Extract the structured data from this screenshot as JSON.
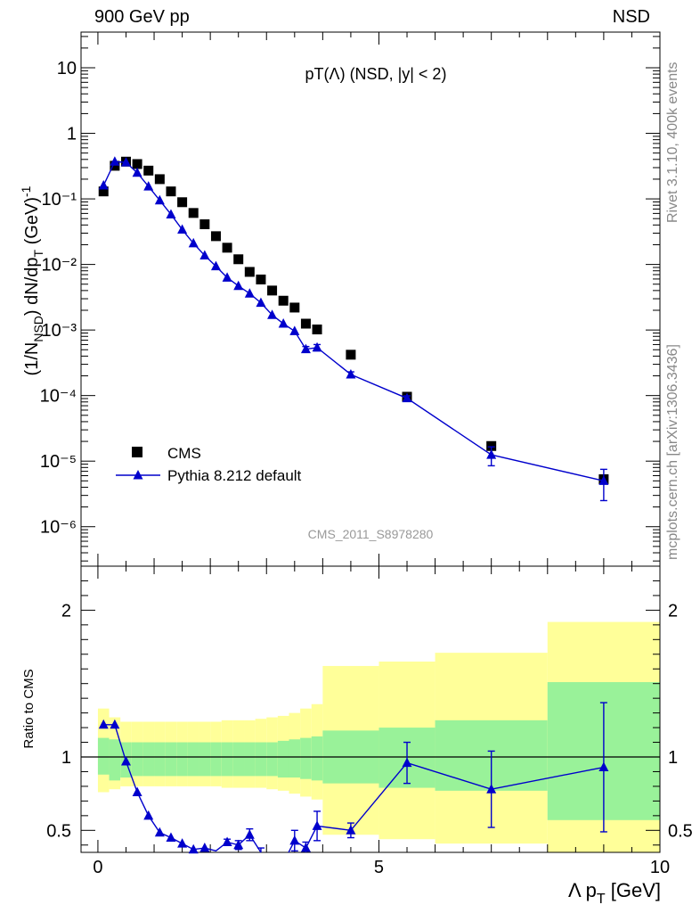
{
  "header": {
    "left": "900 GeV pp",
    "right": "NSD"
  },
  "side_text": {
    "top": "Rivet 3.1.10,  400k events",
    "bottom": "mcplots.cern.ch [arXiv:1306.3436]"
  },
  "colors": {
    "cms": "#000000",
    "pythia": "#0000cc",
    "band_inner": "#99f299",
    "band_outer": "#ffff99"
  },
  "chart_data": [
    {
      "type": "scatter",
      "title": "pT(Λ) (NSD, |y| < 2)",
      "ylabel": "(1/N_NSD) dN/dp_T (GeV)^-1",
      "ylog": true,
      "ylim": [
        2.5e-07,
        35
      ],
      "xlim": [
        -0.3,
        10
      ],
      "yticklabels": [
        "10",
        "1",
        "10⁻¹",
        "10⁻²",
        "10⁻³",
        "10⁻⁴",
        "10⁻⁵",
        "10⁻⁶"
      ],
      "watermark": "CMS_2011_S8978280",
      "series": [
        {
          "name": "CMS",
          "marker": "square",
          "x": [
            0.1,
            0.3,
            0.5,
            0.7,
            0.9,
            1.1,
            1.3,
            1.5,
            1.7,
            1.9,
            2.1,
            2.3,
            2.5,
            2.7,
            2.9,
            3.1,
            3.3,
            3.5,
            3.7,
            3.9,
            4.5,
            5.5,
            7.0,
            9.0
          ],
          "y": [
            0.13,
            0.32,
            0.37,
            0.34,
            0.27,
            0.2,
            0.13,
            0.089,
            0.061,
            0.041,
            0.027,
            0.018,
            0.012,
            0.0077,
            0.0059,
            0.004,
            0.0028,
            0.0022,
            0.00125,
            0.00102,
            0.00042,
            9.6e-05,
            1.7e-05,
            5.3e-06
          ]
        },
        {
          "name": "Pythia 8.212 default",
          "marker": "triangle",
          "x": [
            0.1,
            0.3,
            0.5,
            0.7,
            0.9,
            1.1,
            1.3,
            1.5,
            1.7,
            1.9,
            2.1,
            2.3,
            2.5,
            2.7,
            2.9,
            3.1,
            3.3,
            3.5,
            3.7,
            3.9,
            4.5,
            5.5,
            7.0,
            9.0
          ],
          "y": [
            0.16,
            0.37,
            0.36,
            0.25,
            0.155,
            0.095,
            0.058,
            0.034,
            0.021,
            0.0137,
            0.0094,
            0.0063,
            0.0047,
            0.0036,
            0.0026,
            0.0017,
            0.00125,
            0.00096,
            0.00051,
            0.00054,
            0.00021,
            9.1e-05,
            1.25e-05,
            5e-06
          ],
          "err": [
            0,
            0,
            0,
            0,
            0,
            0,
            0,
            0,
            0,
            0,
            0,
            0,
            0,
            0,
            0,
            0,
            0,
            0,
            5e-05,
            6e-05,
            2e-05,
            8e-06,
            4e-06,
            2.5e-06
          ]
        }
      ]
    },
    {
      "type": "scatter",
      "ylabel": "Ratio to CMS",
      "ylim": [
        0.35,
        2.3
      ],
      "xlim": [
        -0.3,
        10
      ],
      "xlabel": "Λ p_T [GeV]",
      "xticklabels": [
        "0",
        "5",
        "10"
      ],
      "yticklabels": [
        "2",
        "1",
        "0.5"
      ],
      "bins": [
        0,
        0.2,
        0.4,
        0.6,
        0.8,
        1.0,
        1.2,
        1.4,
        1.6,
        1.8,
        2.0,
        2.2,
        2.4,
        2.6,
        2.8,
        3.0,
        3.2,
        3.4,
        3.6,
        3.8,
        4.0,
        5.0,
        6.0,
        8.0,
        10.0
      ],
      "band_inner": [
        [
          0.88,
          1.13
        ],
        [
          0.84,
          1.12
        ],
        [
          0.86,
          1.1
        ],
        [
          0.87,
          1.1
        ],
        [
          0.87,
          1.1
        ],
        [
          0.87,
          1.1
        ],
        [
          0.87,
          1.1
        ],
        [
          0.87,
          1.1
        ],
        [
          0.87,
          1.1
        ],
        [
          0.87,
          1.1
        ],
        [
          0.87,
          1.1
        ],
        [
          0.87,
          1.1
        ],
        [
          0.87,
          1.1
        ],
        [
          0.87,
          1.1
        ],
        [
          0.87,
          1.1
        ],
        [
          0.87,
          1.1
        ],
        [
          0.86,
          1.11
        ],
        [
          0.86,
          1.12
        ],
        [
          0.85,
          1.13
        ],
        [
          0.84,
          1.14
        ],
        [
          0.82,
          1.18
        ],
        [
          0.79,
          1.2
        ],
        [
          0.77,
          1.25
        ],
        [
          0.57,
          1.51
        ]
      ],
      "band_outer": [
        [
          0.76,
          1.33
        ],
        [
          0.78,
          1.27
        ],
        [
          0.8,
          1.24
        ],
        [
          0.8,
          1.24
        ],
        [
          0.8,
          1.24
        ],
        [
          0.8,
          1.24
        ],
        [
          0.8,
          1.24
        ],
        [
          0.8,
          1.24
        ],
        [
          0.8,
          1.24
        ],
        [
          0.8,
          1.24
        ],
        [
          0.8,
          1.24
        ],
        [
          0.79,
          1.25
        ],
        [
          0.79,
          1.25
        ],
        [
          0.79,
          1.25
        ],
        [
          0.79,
          1.26
        ],
        [
          0.78,
          1.27
        ],
        [
          0.77,
          1.28
        ],
        [
          0.75,
          1.3
        ],
        [
          0.73,
          1.33
        ],
        [
          0.71,
          1.36
        ],
        [
          0.47,
          1.62
        ],
        [
          0.44,
          1.65
        ],
        [
          0.41,
          1.71
        ],
        [
          0.3,
          1.92
        ]
      ],
      "series": [
        {
          "name": "Pythia 8.212 default",
          "x": [
            0.1,
            0.3,
            0.5,
            0.7,
            0.9,
            1.1,
            1.3,
            1.5,
            1.7,
            1.9,
            2.1,
            2.3,
            2.5,
            2.7,
            2.9,
            3.1,
            3.3,
            3.5,
            3.7,
            3.9,
            4.5,
            5.5,
            7.0,
            9.0
          ],
          "y": [
            1.22,
            1.22,
            0.97,
            0.76,
            0.6,
            0.485,
            0.45,
            0.41,
            0.37,
            0.38,
            0.36,
            0.42,
            0.4,
            0.47,
            0.35,
            0.3,
            0.28,
            0.43,
            0.38,
            0.53,
            0.5,
            0.96,
            0.78,
            0.93
          ],
          "err": [
            0,
            0,
            0,
            0,
            0,
            0,
            0,
            0,
            0,
            0,
            0,
            0.02,
            0.03,
            0.04,
            0.03,
            0.03,
            0.05,
            0.07,
            0.04,
            0.1,
            0.05,
            0.14,
            0.26,
            0.44
          ]
        }
      ]
    }
  ]
}
